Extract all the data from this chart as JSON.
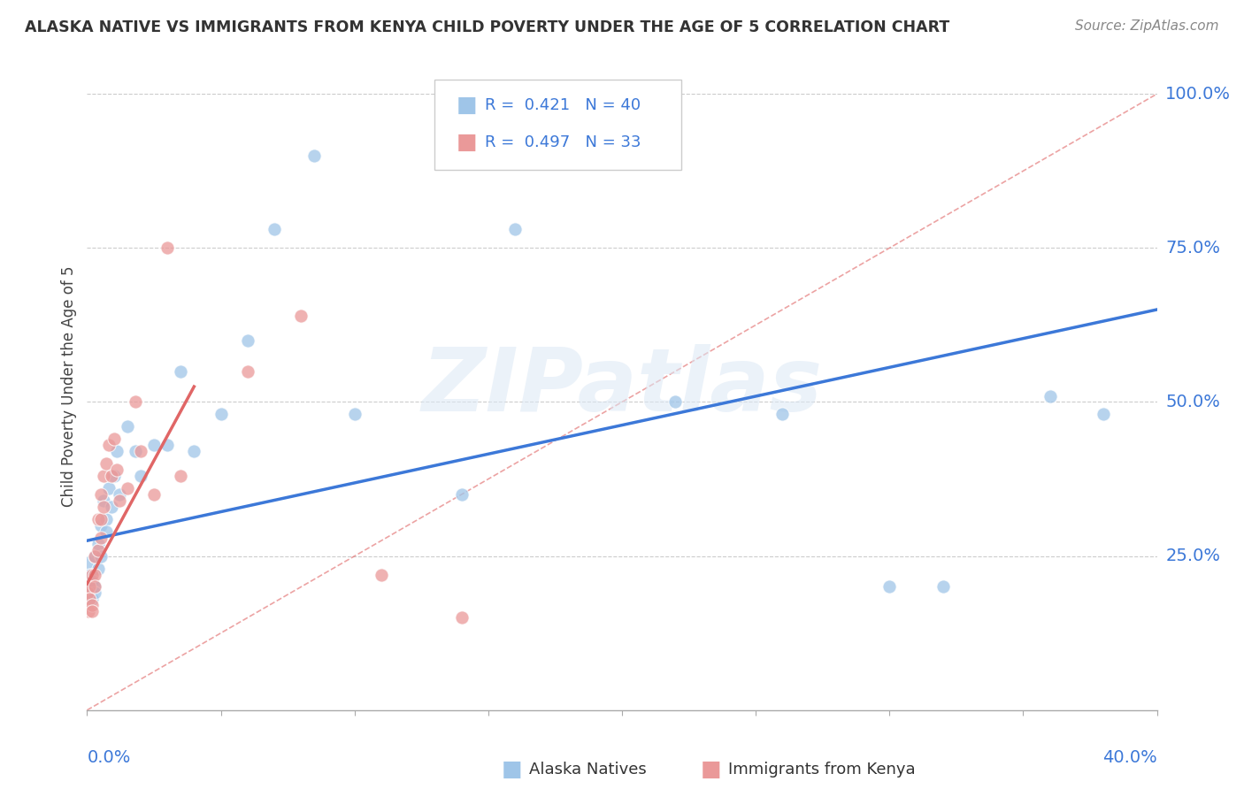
{
  "title": "ALASKA NATIVE VS IMMIGRANTS FROM KENYA CHILD POVERTY UNDER THE AGE OF 5 CORRELATION CHART",
  "source": "Source: ZipAtlas.com",
  "ylabel": "Child Poverty Under the Age of 5",
  "legend_blue_text": "R =  0.421   N = 40",
  "legend_pink_text": "R =  0.497   N = 33",
  "legend_label_blue": "Alaska Natives",
  "legend_label_pink": "Immigrants from Kenya",
  "watermark": "ZIPatlas",
  "blue_scatter_color": "#9fc5e8",
  "pink_scatter_color": "#ea9999",
  "blue_line_color": "#3c78d8",
  "pink_line_color": "#e06666",
  "diag_line_color": "#e06666",
  "grid_color": "#cccccc",
  "title_color": "#333333",
  "axis_label_color": "#3c78d8",
  "legend_text_color": "#3c78d8",
  "alaska_x": [
    0.0005,
    0.001,
    0.001,
    0.002,
    0.002,
    0.003,
    0.003,
    0.003,
    0.004,
    0.004,
    0.005,
    0.005,
    0.006,
    0.007,
    0.007,
    0.008,
    0.009,
    0.01,
    0.011,
    0.012,
    0.015,
    0.018,
    0.02,
    0.025,
    0.03,
    0.035,
    0.04,
    0.05,
    0.06,
    0.07,
    0.085,
    0.1,
    0.14,
    0.16,
    0.22,
    0.26,
    0.3,
    0.32,
    0.36,
    0.38
  ],
  "alaska_y": [
    0.24,
    0.2,
    0.22,
    0.18,
    0.21,
    0.25,
    0.2,
    0.19,
    0.27,
    0.23,
    0.3,
    0.25,
    0.34,
    0.31,
    0.29,
    0.36,
    0.33,
    0.38,
    0.42,
    0.35,
    0.46,
    0.42,
    0.38,
    0.43,
    0.43,
    0.55,
    0.42,
    0.48,
    0.6,
    0.78,
    0.9,
    0.48,
    0.35,
    0.78,
    0.5,
    0.48,
    0.2,
    0.2,
    0.51,
    0.48
  ],
  "kenya_x": [
    0.0002,
    0.0005,
    0.001,
    0.001,
    0.002,
    0.002,
    0.002,
    0.003,
    0.003,
    0.003,
    0.004,
    0.004,
    0.005,
    0.005,
    0.005,
    0.006,
    0.006,
    0.007,
    0.008,
    0.009,
    0.01,
    0.011,
    0.012,
    0.015,
    0.018,
    0.02,
    0.025,
    0.03,
    0.035,
    0.06,
    0.08,
    0.11,
    0.14
  ],
  "kenya_y": [
    0.19,
    0.16,
    0.2,
    0.18,
    0.22,
    0.17,
    0.16,
    0.25,
    0.22,
    0.2,
    0.31,
    0.26,
    0.35,
    0.31,
    0.28,
    0.38,
    0.33,
    0.4,
    0.43,
    0.38,
    0.44,
    0.39,
    0.34,
    0.36,
    0.5,
    0.42,
    0.35,
    0.75,
    0.38,
    0.55,
    0.64,
    0.22,
    0.15
  ],
  "xlim": [
    0,
    0.4
  ],
  "ylim": [
    0,
    1.05
  ],
  "ytick_vals": [
    0.25,
    0.5,
    0.75,
    1.0
  ],
  "ytick_labels": [
    "25.0%",
    "50.0%",
    "75.0%",
    "100.0%"
  ]
}
